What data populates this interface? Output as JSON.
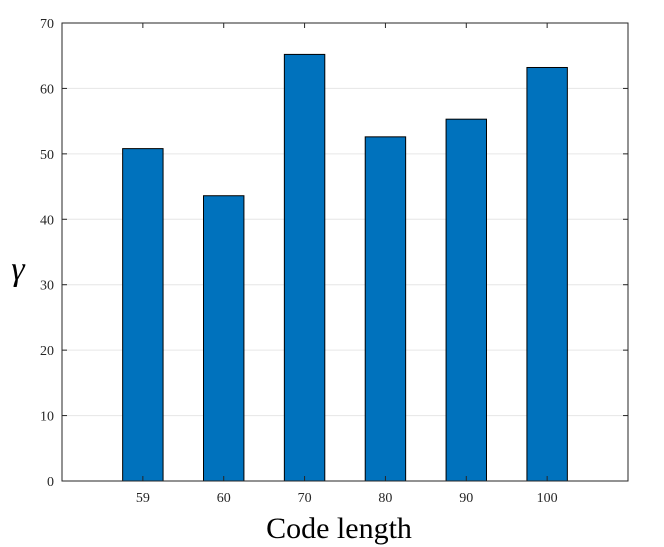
{
  "chart_data": {
    "type": "bar",
    "categories": [
      "59",
      "60",
      "70",
      "80",
      "90",
      "100"
    ],
    "values": [
      50.8,
      43.6,
      65.2,
      52.6,
      55.3,
      63.2
    ],
    "xlabel": "Code length",
    "ylabel": "γ",
    "ylim": [
      0,
      70
    ],
    "yticks": [
      0,
      10,
      20,
      30,
      40,
      50,
      60,
      70
    ],
    "grid": true,
    "legend": "none",
    "colors": {
      "bar": "#0072BD",
      "bar_edge": "#000000",
      "grid": "#e6e6e6",
      "axis": "#262626"
    }
  }
}
